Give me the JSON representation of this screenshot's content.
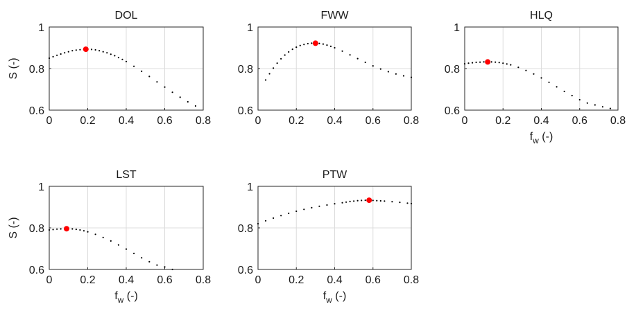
{
  "chart_data": [
    {
      "type": "scatter",
      "title": "DOL",
      "xlabel": "",
      "ylabel": "S (-)",
      "xlim": [
        0,
        0.8
      ],
      "ylim": [
        0.6,
        1
      ],
      "xticks": [
        "0",
        "0.2",
        "0.4",
        "0.6",
        "0.8"
      ],
      "yticks": [
        "0.6",
        "0.8",
        "1"
      ],
      "grid": true,
      "series": [
        {
          "marker": "dot",
          "color": "#000000",
          "points": [
            [
              0.0,
              0.85
            ],
            [
              0.02,
              0.857
            ],
            [
              0.04,
              0.864
            ],
            [
              0.06,
              0.87
            ],
            [
              0.08,
              0.876
            ],
            [
              0.1,
              0.881
            ],
            [
              0.12,
              0.886
            ],
            [
              0.14,
              0.889
            ],
            [
              0.16,
              0.891
            ],
            [
              0.18,
              0.893
            ],
            [
              0.19,
              0.893
            ],
            [
              0.2,
              0.893
            ],
            [
              0.22,
              0.892
            ],
            [
              0.24,
              0.89
            ],
            [
              0.26,
              0.886
            ],
            [
              0.28,
              0.881
            ],
            [
              0.3,
              0.876
            ],
            [
              0.32,
              0.869
            ],
            [
              0.34,
              0.862
            ],
            [
              0.36,
              0.853
            ],
            [
              0.38,
              0.844
            ],
            [
              0.4,
              0.834
            ],
            [
              0.44,
              0.811
            ],
            [
              0.48,
              0.787
            ],
            [
              0.52,
              0.762
            ],
            [
              0.56,
              0.736
            ],
            [
              0.6,
              0.711
            ],
            [
              0.64,
              0.686
            ],
            [
              0.68,
              0.662
            ],
            [
              0.72,
              0.64
            ],
            [
              0.76,
              0.62
            ]
          ]
        },
        {
          "marker": "optimum",
          "color": "#ff0000",
          "points": [
            [
              0.19,
              0.893
            ]
          ]
        }
      ]
    },
    {
      "type": "scatter",
      "title": "FWW",
      "xlabel": "",
      "ylabel": "",
      "xlim": [
        0,
        0.8
      ],
      "ylim": [
        0.6,
        1
      ],
      "xticks": [
        "0",
        "0.2",
        "0.4",
        "0.6",
        "0.8"
      ],
      "yticks": [
        "0.6",
        "0.8",
        "1"
      ],
      "grid": true,
      "series": [
        {
          "marker": "dot",
          "color": "#000000",
          "points": [
            [
              0.04,
              0.745
            ],
            [
              0.06,
              0.775
            ],
            [
              0.08,
              0.802
            ],
            [
              0.1,
              0.826
            ],
            [
              0.12,
              0.847
            ],
            [
              0.14,
              0.865
            ],
            [
              0.16,
              0.88
            ],
            [
              0.18,
              0.893
            ],
            [
              0.2,
              0.903
            ],
            [
              0.22,
              0.911
            ],
            [
              0.24,
              0.916
            ],
            [
              0.26,
              0.92
            ],
            [
              0.28,
              0.922
            ],
            [
              0.3,
              0.922
            ],
            [
              0.32,
              0.921
            ],
            [
              0.34,
              0.918
            ],
            [
              0.36,
              0.913
            ],
            [
              0.38,
              0.907
            ],
            [
              0.4,
              0.9
            ],
            [
              0.44,
              0.884
            ],
            [
              0.48,
              0.866
            ],
            [
              0.52,
              0.848
            ],
            [
              0.56,
              0.83
            ],
            [
              0.6,
              0.813
            ],
            [
              0.64,
              0.798
            ],
            [
              0.68,
              0.785
            ],
            [
              0.72,
              0.774
            ],
            [
              0.76,
              0.765
            ],
            [
              0.8,
              0.758
            ]
          ]
        },
        {
          "marker": "optimum",
          "color": "#ff0000",
          "points": [
            [
              0.3,
              0.922
            ]
          ]
        }
      ]
    },
    {
      "type": "scatter",
      "title": "HLQ",
      "xlabel": "f_w (-)",
      "ylabel": "",
      "xlim": [
        0,
        0.8
      ],
      "ylim": [
        0.6,
        1
      ],
      "xticks": [
        "0",
        "0.2",
        "0.4",
        "0.6",
        "0.8"
      ],
      "yticks": [
        "0.6",
        "0.8",
        "1"
      ],
      "grid": true,
      "series": [
        {
          "marker": "dot",
          "color": "#000000",
          "points": [
            [
              0.0,
              0.823
            ],
            [
              0.02,
              0.826
            ],
            [
              0.04,
              0.828
            ],
            [
              0.06,
              0.83
            ],
            [
              0.08,
              0.831
            ],
            [
              0.1,
              0.832
            ],
            [
              0.12,
              0.832
            ],
            [
              0.14,
              0.832
            ],
            [
              0.16,
              0.831
            ],
            [
              0.18,
              0.829
            ],
            [
              0.2,
              0.826
            ],
            [
              0.22,
              0.822
            ],
            [
              0.24,
              0.818
            ],
            [
              0.28,
              0.806
            ],
            [
              0.32,
              0.791
            ],
            [
              0.36,
              0.774
            ],
            [
              0.4,
              0.755
            ],
            [
              0.44,
              0.734
            ],
            [
              0.48,
              0.712
            ],
            [
              0.52,
              0.69
            ],
            [
              0.56,
              0.67
            ],
            [
              0.6,
              0.65
            ],
            [
              0.64,
              0.634
            ],
            [
              0.68,
              0.625
            ],
            [
              0.72,
              0.616
            ],
            [
              0.76,
              0.608
            ]
          ]
        },
        {
          "marker": "optimum",
          "color": "#ff0000",
          "points": [
            [
              0.12,
              0.832
            ]
          ]
        }
      ]
    },
    {
      "type": "scatter",
      "title": "LST",
      "xlabel": "f_w (-)",
      "ylabel": "S (-)",
      "xlim": [
        0,
        0.8
      ],
      "ylim": [
        0.6,
        1
      ],
      "xticks": [
        "0",
        "0.2",
        "0.4",
        "0.6",
        "0.8"
      ],
      "yticks": [
        "0.6",
        "0.8",
        "1"
      ],
      "grid": true,
      "series": [
        {
          "marker": "dot",
          "color": "#000000",
          "points": [
            [
              0.0,
              0.79
            ],
            [
              0.02,
              0.792
            ],
            [
              0.04,
              0.794
            ],
            [
              0.06,
              0.795
            ],
            [
              0.08,
              0.796
            ],
            [
              0.09,
              0.796
            ],
            [
              0.1,
              0.796
            ],
            [
              0.12,
              0.795
            ],
            [
              0.14,
              0.793
            ],
            [
              0.16,
              0.79
            ],
            [
              0.18,
              0.786
            ],
            [
              0.2,
              0.781
            ],
            [
              0.24,
              0.769
            ],
            [
              0.28,
              0.754
            ],
            [
              0.32,
              0.737
            ],
            [
              0.36,
              0.718
            ],
            [
              0.4,
              0.698
            ],
            [
              0.44,
              0.677
            ],
            [
              0.48,
              0.656
            ],
            [
              0.52,
              0.637
            ],
            [
              0.56,
              0.621
            ],
            [
              0.6,
              0.612
            ],
            [
              0.64,
              0.6
            ]
          ]
        },
        {
          "marker": "optimum",
          "color": "#ff0000",
          "points": [
            [
              0.09,
              0.796
            ]
          ]
        }
      ]
    },
    {
      "type": "scatter",
      "title": "PTW",
      "xlabel": "f_w (-)",
      "ylabel": "",
      "xlim": [
        0,
        0.8
      ],
      "ylim": [
        0.6,
        1
      ],
      "xticks": [
        "0",
        "0.2",
        "0.4",
        "0.6",
        "0.8"
      ],
      "yticks": [
        "0.6",
        "0.8",
        "1"
      ],
      "grid": true,
      "series": [
        {
          "marker": "dot",
          "color": "#000000",
          "points": [
            [
              0.0,
              0.82
            ],
            [
              0.04,
              0.834
            ],
            [
              0.08,
              0.847
            ],
            [
              0.12,
              0.859
            ],
            [
              0.16,
              0.87
            ],
            [
              0.2,
              0.88
            ],
            [
              0.24,
              0.889
            ],
            [
              0.28,
              0.897
            ],
            [
              0.32,
              0.904
            ],
            [
              0.36,
              0.91
            ],
            [
              0.4,
              0.916
            ],
            [
              0.44,
              0.921
            ],
            [
              0.46,
              0.924
            ],
            [
              0.48,
              0.927
            ],
            [
              0.5,
              0.929
            ],
            [
              0.52,
              0.931
            ],
            [
              0.54,
              0.932
            ],
            [
              0.56,
              0.933
            ],
            [
              0.58,
              0.933
            ],
            [
              0.6,
              0.932
            ],
            [
              0.62,
              0.931
            ],
            [
              0.64,
              0.93
            ],
            [
              0.66,
              0.929
            ],
            [
              0.7,
              0.926
            ],
            [
              0.74,
              0.923
            ],
            [
              0.78,
              0.919
            ],
            [
              0.8,
              0.917
            ]
          ]
        },
        {
          "marker": "optimum",
          "color": "#ff0000",
          "points": [
            [
              0.58,
              0.933
            ]
          ]
        }
      ]
    }
  ]
}
